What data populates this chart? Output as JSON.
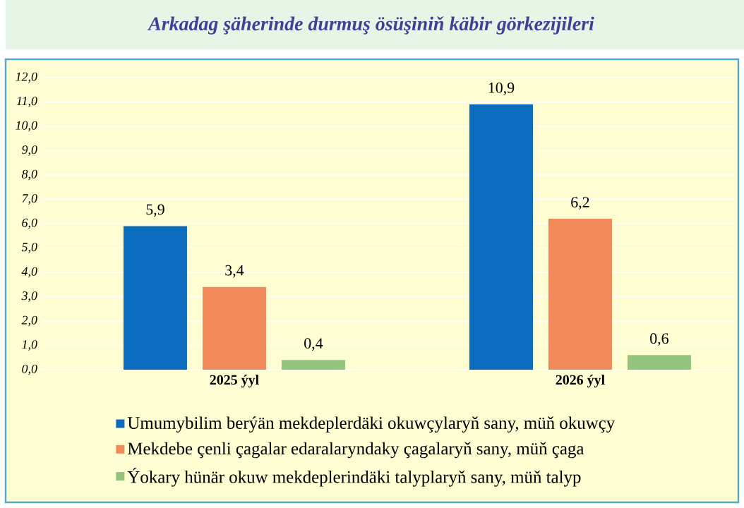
{
  "chart_data": {
    "type": "bar",
    "title": "Arkadag şäherinde durmuş ösüşiniň käbir görkezijileri",
    "categories": [
      "2025 ýyl",
      "2026 ýyl"
    ],
    "series": [
      {
        "name": "Umumybilim berýän mekdeplerdäki okuwçylaryň sany, müň okuwçy",
        "color": "#0b6bbd",
        "values": [
          5.9,
          10.9
        ],
        "value_labels": [
          "5,9",
          "10,9"
        ]
      },
      {
        "name": "Mekdebe çenli çagalar edaralaryndaky çagalaryň sany, müň çaga",
        "color": "#f08a5a",
        "values": [
          3.4,
          6.2
        ],
        "value_labels": [
          "3,4",
          "6,2"
        ]
      },
      {
        "name": "Ýokary hünär okuw mekdeplerindäki talyplaryň sany, müň talyp",
        "color": "#92c47c",
        "values": [
          0.4,
          0.6
        ],
        "value_labels": [
          "0,4",
          "0,6"
        ]
      }
    ],
    "ylim": [
      0,
      12
    ],
    "yticks": [
      {
        "value": 0,
        "label": "0,0"
      },
      {
        "value": 1,
        "label": "1,0"
      },
      {
        "value": 2,
        "label": "2,0"
      },
      {
        "value": 3,
        "label": "3,0"
      },
      {
        "value": 4,
        "label": "4,0"
      },
      {
        "value": 5,
        "label": "5,0"
      },
      {
        "value": 6,
        "label": "6,0"
      },
      {
        "value": 7,
        "label": "7,0"
      },
      {
        "value": 8,
        "label": "8,0"
      },
      {
        "value": 9,
        "label": "9,0"
      },
      {
        "value": 10,
        "label": "10,0"
      },
      {
        "value": 11,
        "label": "11,0"
      },
      {
        "value": 12,
        "label": "12,0"
      }
    ],
    "grid": "y",
    "legend": "bottom"
  }
}
